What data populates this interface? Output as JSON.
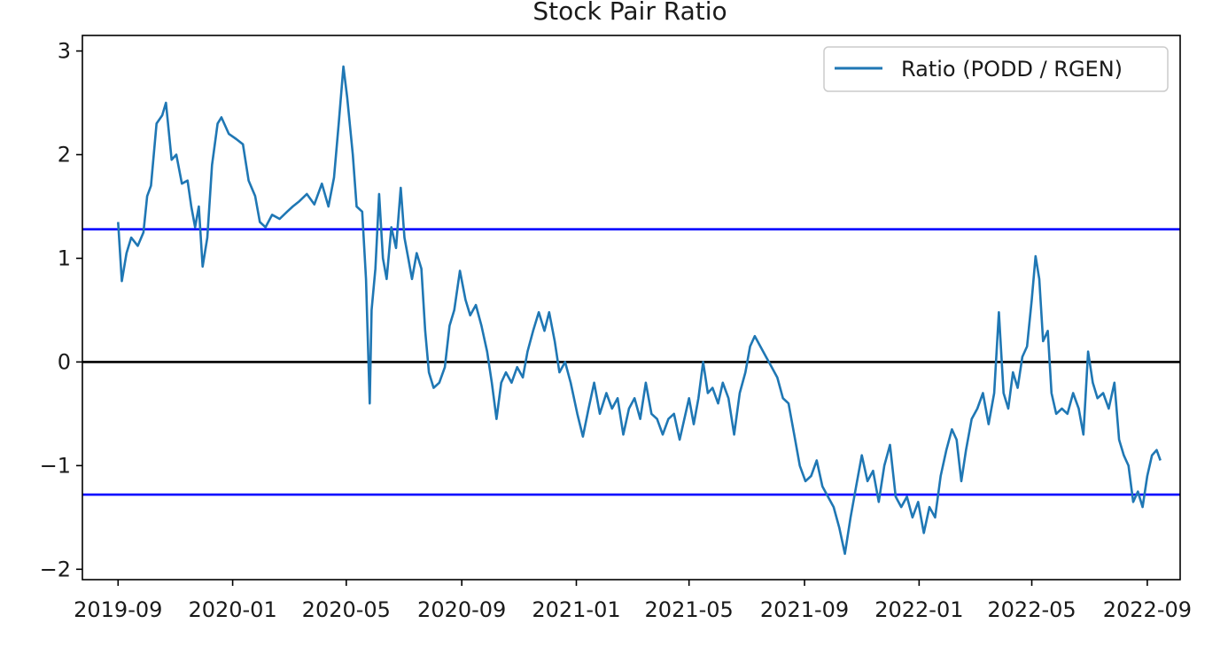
{
  "chart_data": {
    "type": "line",
    "title": "Stock Pair Ratio",
    "xlabel": "",
    "ylabel": "",
    "x_tick_labels": [
      "2019-09",
      "2020-01",
      "2020-05",
      "2020-09",
      "2021-01",
      "2021-05",
      "2021-09",
      "2022-01",
      "2022-05",
      "2022-09"
    ],
    "y_ticks": [
      3,
      2,
      1,
      0,
      -1,
      -2
    ],
    "y_tick_labels": [
      "3",
      "2",
      "1",
      "0",
      "−1",
      "−2"
    ],
    "ylim": [
      -2.1,
      3.15
    ],
    "xlim": [
      "2019-07-25",
      "2022-10-06"
    ],
    "grid": false,
    "legend_position": "top-right",
    "reference_lines": [
      {
        "y": 1.28,
        "color": "#0000ff"
      },
      {
        "y": 0,
        "color": "#000000"
      },
      {
        "y": -1.28,
        "color": "#0000ff"
      }
    ],
    "series": [
      {
        "name": "Ratio (PODD / RGEN)",
        "color": "#1f77b4",
        "points": [
          [
            "2019-09-01",
            1.35
          ],
          [
            "2019-09-05",
            0.78
          ],
          [
            "2019-09-10",
            1.05
          ],
          [
            "2019-09-15",
            1.2
          ],
          [
            "2019-09-22",
            1.12
          ],
          [
            "2019-09-28",
            1.25
          ],
          [
            "2019-10-02",
            1.6
          ],
          [
            "2019-10-06",
            1.7
          ],
          [
            "2019-10-12",
            2.3
          ],
          [
            "2019-10-18",
            2.38
          ],
          [
            "2019-10-22",
            2.5
          ],
          [
            "2019-10-28",
            1.95
          ],
          [
            "2019-11-02",
            2.0
          ],
          [
            "2019-11-08",
            1.72
          ],
          [
            "2019-11-14",
            1.75
          ],
          [
            "2019-11-18",
            1.5
          ],
          [
            "2019-11-22",
            1.3
          ],
          [
            "2019-11-26",
            1.5
          ],
          [
            "2019-11-30",
            0.92
          ],
          [
            "2019-12-05",
            1.2
          ],
          [
            "2019-12-10",
            1.9
          ],
          [
            "2019-12-16",
            2.3
          ],
          [
            "2019-12-20",
            2.36
          ],
          [
            "2019-12-28",
            2.2
          ],
          [
            "2020-01-05",
            2.15
          ],
          [
            "2020-01-12",
            2.1
          ],
          [
            "2020-01-18",
            1.75
          ],
          [
            "2020-01-25",
            1.6
          ],
          [
            "2020-01-30",
            1.35
          ],
          [
            "2020-02-05",
            1.3
          ],
          [
            "2020-02-12",
            1.42
          ],
          [
            "2020-02-20",
            1.38
          ],
          [
            "2020-02-28",
            1.45
          ],
          [
            "2020-03-05",
            1.5
          ],
          [
            "2020-03-12",
            1.55
          ],
          [
            "2020-03-20",
            1.62
          ],
          [
            "2020-03-28",
            1.52
          ],
          [
            "2020-04-05",
            1.72
          ],
          [
            "2020-04-12",
            1.5
          ],
          [
            "2020-04-18",
            1.78
          ],
          [
            "2020-04-23",
            2.3
          ],
          [
            "2020-04-28",
            2.85
          ],
          [
            "2020-05-02",
            2.55
          ],
          [
            "2020-05-08",
            2.0
          ],
          [
            "2020-05-12",
            1.5
          ],
          [
            "2020-05-18",
            1.45
          ],
          [
            "2020-05-22",
            0.8
          ],
          [
            "2020-05-26",
            -0.4
          ],
          [
            "2020-05-28",
            0.5
          ],
          [
            "2020-06-01",
            0.9
          ],
          [
            "2020-06-05",
            1.62
          ],
          [
            "2020-06-09",
            1.0
          ],
          [
            "2020-06-13",
            0.8
          ],
          [
            "2020-06-18",
            1.3
          ],
          [
            "2020-06-23",
            1.1
          ],
          [
            "2020-06-28",
            1.68
          ],
          [
            "2020-07-02",
            1.2
          ],
          [
            "2020-07-06",
            1.0
          ],
          [
            "2020-07-10",
            0.8
          ],
          [
            "2020-07-15",
            1.05
          ],
          [
            "2020-07-20",
            0.9
          ],
          [
            "2020-07-24",
            0.3
          ],
          [
            "2020-07-28",
            -0.1
          ],
          [
            "2020-08-02",
            -0.25
          ],
          [
            "2020-08-08",
            -0.2
          ],
          [
            "2020-08-14",
            -0.05
          ],
          [
            "2020-08-19",
            0.35
          ],
          [
            "2020-08-24",
            0.5
          ],
          [
            "2020-08-30",
            0.88
          ],
          [
            "2020-09-05",
            0.6
          ],
          [
            "2020-09-10",
            0.45
          ],
          [
            "2020-09-16",
            0.55
          ],
          [
            "2020-09-22",
            0.35
          ],
          [
            "2020-09-28",
            0.1
          ],
          [
            "2020-10-03",
            -0.2
          ],
          [
            "2020-10-08",
            -0.55
          ],
          [
            "2020-10-13",
            -0.2
          ],
          [
            "2020-10-18",
            -0.1
          ],
          [
            "2020-10-24",
            -0.2
          ],
          [
            "2020-10-30",
            -0.05
          ],
          [
            "2020-11-05",
            -0.15
          ],
          [
            "2020-11-10",
            0.1
          ],
          [
            "2020-11-16",
            0.3
          ],
          [
            "2020-11-22",
            0.48
          ],
          [
            "2020-11-28",
            0.3
          ],
          [
            "2020-12-03",
            0.48
          ],
          [
            "2020-12-09",
            0.2
          ],
          [
            "2020-12-14",
            -0.1
          ],
          [
            "2020-12-20",
            0.0
          ],
          [
            "2020-12-26",
            -0.2
          ],
          [
            "2021-01-02",
            -0.5
          ],
          [
            "2021-01-08",
            -0.72
          ],
          [
            "2021-01-14",
            -0.45
          ],
          [
            "2021-01-20",
            -0.2
          ],
          [
            "2021-01-26",
            -0.5
          ],
          [
            "2021-02-02",
            -0.3
          ],
          [
            "2021-02-08",
            -0.45
          ],
          [
            "2021-02-14",
            -0.35
          ],
          [
            "2021-02-20",
            -0.7
          ],
          [
            "2021-02-26",
            -0.45
          ],
          [
            "2021-03-04",
            -0.35
          ],
          [
            "2021-03-10",
            -0.55
          ],
          [
            "2021-03-16",
            -0.2
          ],
          [
            "2021-03-22",
            -0.5
          ],
          [
            "2021-03-28",
            -0.55
          ],
          [
            "2021-04-03",
            -0.7
          ],
          [
            "2021-04-09",
            -0.55
          ],
          [
            "2021-04-15",
            -0.5
          ],
          [
            "2021-04-21",
            -0.75
          ],
          [
            "2021-04-26",
            -0.55
          ],
          [
            "2021-05-01",
            -0.35
          ],
          [
            "2021-05-06",
            -0.6
          ],
          [
            "2021-05-11",
            -0.35
          ],
          [
            "2021-05-16",
            0.0
          ],
          [
            "2021-05-21",
            -0.3
          ],
          [
            "2021-05-26",
            -0.25
          ],
          [
            "2021-06-01",
            -0.4
          ],
          [
            "2021-06-06",
            -0.2
          ],
          [
            "2021-06-12",
            -0.35
          ],
          [
            "2021-06-18",
            -0.7
          ],
          [
            "2021-06-24",
            -0.3
          ],
          [
            "2021-06-30",
            -0.1
          ],
          [
            "2021-07-05",
            0.15
          ],
          [
            "2021-07-10",
            0.25
          ],
          [
            "2021-07-16",
            0.15
          ],
          [
            "2021-07-22",
            0.05
          ],
          [
            "2021-07-28",
            -0.05
          ],
          [
            "2021-08-03",
            -0.15
          ],
          [
            "2021-08-09",
            -0.35
          ],
          [
            "2021-08-15",
            -0.4
          ],
          [
            "2021-08-21",
            -0.7
          ],
          [
            "2021-08-27",
            -1.0
          ],
          [
            "2021-09-02",
            -1.15
          ],
          [
            "2021-09-08",
            -1.1
          ],
          [
            "2021-09-14",
            -0.95
          ],
          [
            "2021-09-20",
            -1.2
          ],
          [
            "2021-09-26",
            -1.3
          ],
          [
            "2021-10-02",
            -1.4
          ],
          [
            "2021-10-08",
            -1.6
          ],
          [
            "2021-10-14",
            -1.85
          ],
          [
            "2021-10-20",
            -1.5
          ],
          [
            "2021-10-26",
            -1.2
          ],
          [
            "2021-11-01",
            -0.9
          ],
          [
            "2021-11-07",
            -1.15
          ],
          [
            "2021-11-13",
            -1.05
          ],
          [
            "2021-11-19",
            -1.35
          ],
          [
            "2021-11-25",
            -1.0
          ],
          [
            "2021-12-01",
            -0.8
          ],
          [
            "2021-12-07",
            -1.3
          ],
          [
            "2021-12-13",
            -1.4
          ],
          [
            "2021-12-19",
            -1.3
          ],
          [
            "2021-12-25",
            -1.5
          ],
          [
            "2021-12-31",
            -1.35
          ],
          [
            "2022-01-06",
            -1.65
          ],
          [
            "2022-01-12",
            -1.4
          ],
          [
            "2022-01-18",
            -1.5
          ],
          [
            "2022-01-24",
            -1.1
          ],
          [
            "2022-01-30",
            -0.85
          ],
          [
            "2022-02-05",
            -0.65
          ],
          [
            "2022-02-10",
            -0.75
          ],
          [
            "2022-02-15",
            -1.15
          ],
          [
            "2022-02-20",
            -0.85
          ],
          [
            "2022-02-26",
            -0.55
          ],
          [
            "2022-03-04",
            -0.45
          ],
          [
            "2022-03-10",
            -0.3
          ],
          [
            "2022-03-16",
            -0.6
          ],
          [
            "2022-03-22",
            -0.3
          ],
          [
            "2022-03-27",
            0.48
          ],
          [
            "2022-04-01",
            -0.3
          ],
          [
            "2022-04-06",
            -0.45
          ],
          [
            "2022-04-11",
            -0.1
          ],
          [
            "2022-04-16",
            -0.25
          ],
          [
            "2022-04-21",
            0.05
          ],
          [
            "2022-04-26",
            0.15
          ],
          [
            "2022-05-01",
            0.6
          ],
          [
            "2022-05-05",
            1.02
          ],
          [
            "2022-05-09",
            0.8
          ],
          [
            "2022-05-13",
            0.2
          ],
          [
            "2022-05-18",
            0.3
          ],
          [
            "2022-05-22",
            -0.3
          ],
          [
            "2022-05-27",
            -0.5
          ],
          [
            "2022-06-02",
            -0.45
          ],
          [
            "2022-06-08",
            -0.5
          ],
          [
            "2022-06-14",
            -0.3
          ],
          [
            "2022-06-20",
            -0.45
          ],
          [
            "2022-06-25",
            -0.7
          ],
          [
            "2022-06-30",
            0.1
          ],
          [
            "2022-07-05",
            -0.2
          ],
          [
            "2022-07-10",
            -0.35
          ],
          [
            "2022-07-16",
            -0.3
          ],
          [
            "2022-07-22",
            -0.45
          ],
          [
            "2022-07-28",
            -0.2
          ],
          [
            "2022-08-02",
            -0.75
          ],
          [
            "2022-08-07",
            -0.9
          ],
          [
            "2022-08-12",
            -1.0
          ],
          [
            "2022-08-17",
            -1.35
          ],
          [
            "2022-08-22",
            -1.25
          ],
          [
            "2022-08-27",
            -1.4
          ],
          [
            "2022-09-01",
            -1.1
          ],
          [
            "2022-09-06",
            -0.9
          ],
          [
            "2022-09-11",
            -0.85
          ],
          [
            "2022-09-15",
            -0.95
          ]
        ]
      }
    ]
  }
}
